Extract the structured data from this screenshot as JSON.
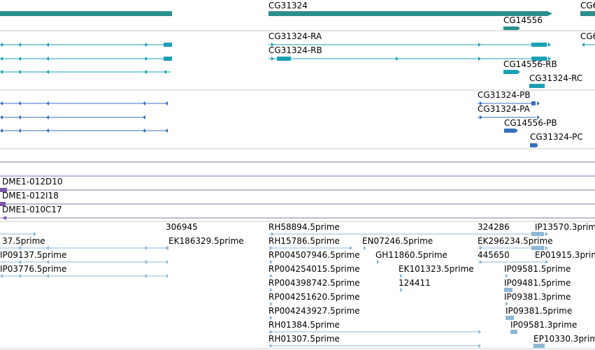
{
  "colors": {
    "gene": "#2a8f8c",
    "mrna": "#1aa1b3",
    "cds": "#3a6fc0",
    "clone": "#7a55a8",
    "est": "#8fb8d8",
    "divider": "#c8c8c8",
    "clone_line": "#8a6fb8"
  },
  "tracks": {
    "genes": {
      "items": [
        {
          "id": "g1",
          "label": ""
        },
        {
          "id": "g2",
          "label": "CG31324"
        },
        {
          "id": "g3",
          "label": "CG14556"
        },
        {
          "id": "g4",
          "label": "CG6"
        }
      ]
    },
    "transcripts": {
      "items": [
        {
          "id": "t-left-1",
          "label": ""
        },
        {
          "id": "t-left-2",
          "label": ""
        },
        {
          "id": "t-left-3",
          "label": ""
        },
        {
          "id": "t-ra",
          "label": "CG31324-RA"
        },
        {
          "id": "t-rb",
          "label": "CG31324-RB"
        },
        {
          "id": "t-14556rb",
          "label": "CG14556-RB"
        },
        {
          "id": "t-rc",
          "label": "CG31324-RC"
        },
        {
          "id": "t-right",
          "label": "CG6"
        }
      ]
    },
    "proteins": {
      "items": [
        {
          "id": "p-left-1",
          "label": ""
        },
        {
          "id": "p-left-2",
          "label": ""
        },
        {
          "id": "p-left-3",
          "label": ""
        },
        {
          "id": "p-pb",
          "label": "CG31324-PB"
        },
        {
          "id": "p-pa",
          "label": "CG31324-PA"
        },
        {
          "id": "p-14556pb",
          "label": "CG14556-PB"
        },
        {
          "id": "p-pc",
          "label": "CG31324-PC"
        }
      ]
    },
    "clones": {
      "items": [
        {
          "id": "c1",
          "label": "DME1-012D10"
        },
        {
          "id": "c2",
          "label": "DME1-012I18"
        },
        {
          "id": "c3",
          "label": "DME1-010C17"
        }
      ]
    },
    "ests": {
      "items": [
        {
          "id": "e1",
          "label": "37.5prime"
        },
        {
          "id": "e2",
          "label": "IP09137.5prime"
        },
        {
          "id": "e3",
          "label": "IP03776.5prime"
        },
        {
          "id": "e4",
          "label": "306945"
        },
        {
          "id": "e5",
          "label": "EK186329.5prime"
        },
        {
          "id": "e6",
          "label": "RH58894.5prime"
        },
        {
          "id": "e7",
          "label": "RH15786.5prime"
        },
        {
          "id": "e8",
          "label": "RP004507946.5prime"
        },
        {
          "id": "e9",
          "label": "RP004254015.5prime"
        },
        {
          "id": "e10",
          "label": "RP004398742.5prime"
        },
        {
          "id": "e11",
          "label": "RP004251620.5prime"
        },
        {
          "id": "e12",
          "label": "RP004243927.5prime"
        },
        {
          "id": "e13",
          "label": "RH01384.5prime"
        },
        {
          "id": "e14",
          "label": "RH01307.5prime"
        },
        {
          "id": "e15",
          "label": "EN07246.5prime"
        },
        {
          "id": "e16",
          "label": "GH11860.5prime"
        },
        {
          "id": "e17",
          "label": "EK101323.5prime"
        },
        {
          "id": "e18",
          "label": "124411"
        },
        {
          "id": "e19",
          "label": "324286"
        },
        {
          "id": "e20",
          "label": "EK296234.5prime"
        },
        {
          "id": "e21",
          "label": "445650"
        },
        {
          "id": "e22",
          "label": "IP13570.3prime"
        },
        {
          "id": "e23",
          "label": "EP01915.3prime"
        },
        {
          "id": "e24",
          "label": "IP09581.5prime"
        },
        {
          "id": "e25",
          "label": "IP09481.5prime"
        },
        {
          "id": "e26",
          "label": "IP09381.3prime"
        },
        {
          "id": "e27",
          "label": "IP09381.5prime"
        },
        {
          "id": "e28",
          "label": "IP09581.3prime"
        },
        {
          "id": "e29",
          "label": "EP10330.3prime"
        }
      ]
    }
  }
}
